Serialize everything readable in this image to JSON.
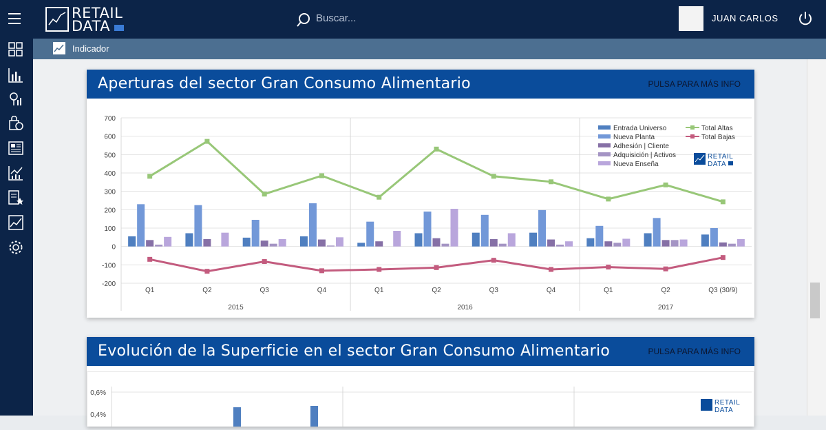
{
  "header": {
    "logo_line1": "RETAIL",
    "logo_line2": "DATA",
    "search_placeholder": "Buscar...",
    "user_name": "JUAN CARLOS"
  },
  "subheader": {
    "label": "Indicador"
  },
  "sidebar": {
    "icons": [
      "dashboard-icon",
      "bar-chart-icon",
      "map-pin-icon",
      "shopping-bag-icon",
      "report-icon",
      "line-chart-icon",
      "star-list-icon",
      "trend-icon",
      "settings-icon"
    ]
  },
  "panels": [
    {
      "title": "Aperturas del sector Gran Consumo Alimentario",
      "more": "PULSA PARA MÁS INFO"
    },
    {
      "title": "Evolución de la Superficie en el sector Gran Consumo Alimentario",
      "more": "PULSA PARA MÁS INFO"
    }
  ],
  "colors": {
    "accent": "#0a4c9b",
    "nav": "#0c2448"
  },
  "chart_data": [
    {
      "type": "bar",
      "yticks": [
        "700",
        "600",
        "500",
        "400",
        "300",
        "200",
        "100",
        "0",
        "-100",
        "-200"
      ],
      "ylim": [
        -200,
        700
      ],
      "categories": [
        "Q1",
        "Q2",
        "Q3",
        "Q4",
        "Q1",
        "Q2",
        "Q3",
        "Q4",
        "Q1",
        "Q2",
        "Q3 (30/9)"
      ],
      "groups": [
        {
          "label": "2015",
          "span": 4
        },
        {
          "label": "2016",
          "span": 4
        },
        {
          "label": "2017",
          "span": 3
        }
      ],
      "watermark": [
        "RETAIL",
        "DATA"
      ],
      "series": [
        {
          "name": "Entrada Universo",
          "color": "#4f7fc0",
          "kind": "bar",
          "values": [
            55,
            72,
            48,
            55,
            20,
            72,
            75,
            75,
            45,
            72,
            65
          ]
        },
        {
          "name": "Nueva Planta",
          "color": "#7298d8",
          "kind": "bar",
          "values": [
            230,
            225,
            145,
            235,
            135,
            190,
            172,
            198,
            112,
            155,
            100
          ]
        },
        {
          "name": "Adhesión | Cliente",
          "color": "#8670a6",
          "kind": "bar",
          "values": [
            35,
            40,
            32,
            38,
            28,
            45,
            40,
            38,
            28,
            35,
            22
          ]
        },
        {
          "name": "Adquisición | Activos",
          "color": "#a494c4",
          "kind": "bar",
          "values": [
            10,
            0,
            15,
            5,
            0,
            15,
            15,
            10,
            20,
            35,
            15
          ]
        },
        {
          "name": "Nueva Enseña",
          "color": "#b9a6dc",
          "kind": "bar",
          "values": [
            52,
            75,
            40,
            50,
            85,
            205,
            72,
            28,
            42,
            38,
            40
          ]
        },
        {
          "name": "Total Altas",
          "color": "#98c778",
          "kind": "line",
          "values": [
            382,
            572,
            285,
            385,
            268,
            530,
            382,
            352,
            258,
            335,
            243
          ]
        },
        {
          "name": "Total Bajas",
          "color": "#c35b7e",
          "kind": "line",
          "values": [
            -70,
            -135,
            -82,
            -132,
            -125,
            -115,
            -75,
            -125,
            -112,
            -122,
            -60
          ]
        }
      ]
    },
    {
      "type": "bar",
      "yticks": [
        "0,6%",
        "0,4%"
      ],
      "watermark": [
        "RETAIL",
        "DATA"
      ],
      "values": []
    }
  ]
}
